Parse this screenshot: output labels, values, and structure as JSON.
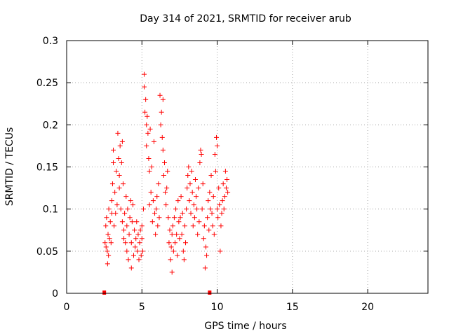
{
  "chart_data": {
    "type": "scatter",
    "title": "Day 314 of 2021, SRMTID for receiver arub",
    "xlabel": "GPS time / hours",
    "ylabel": "SRMTID / TECUs",
    "xlim": [
      0,
      24
    ],
    "ylim": [
      0,
      0.3
    ],
    "xticks": [
      0,
      5,
      10,
      15,
      20
    ],
    "yticks": [
      0,
      0.05,
      0.1,
      0.15,
      0.2,
      0.25,
      0.3
    ],
    "ytick_labels": [
      "0",
      "0.05",
      "0.1",
      "0.15",
      "0.2",
      "0.25",
      "0.3"
    ],
    "grid": true,
    "marker": "+",
    "color": "#ff0000",
    "interval_markers": [
      [
        2.5,
        0
      ],
      [
        9.5,
        0
      ]
    ],
    "series": [
      {
        "name": "SRMTID",
        "points": [
          [
            2.55,
            0.06
          ],
          [
            2.6,
            0.08
          ],
          [
            2.62,
            0.055
          ],
          [
            2.65,
            0.09
          ],
          [
            2.7,
            0.05
          ],
          [
            2.72,
            0.035
          ],
          [
            2.75,
            0.07
          ],
          [
            2.78,
            0.045
          ],
          [
            2.8,
            0.1
          ],
          [
            2.85,
            0.065
          ],
          [
            2.9,
            0.085
          ],
          [
            2.95,
            0.06
          ],
          [
            3.0,
            0.11
          ],
          [
            3.0,
            0.095
          ],
          [
            3.05,
            0.13
          ],
          [
            3.1,
            0.155
          ],
          [
            3.1,
            0.17
          ],
          [
            3.15,
            0.08
          ],
          [
            3.2,
            0.12
          ],
          [
            3.25,
            0.095
          ],
          [
            3.3,
            0.145
          ],
          [
            3.35,
            0.105
          ],
          [
            3.4,
            0.19
          ],
          [
            3.45,
            0.16
          ],
          [
            3.5,
            0.14
          ],
          [
            3.5,
            0.125
          ],
          [
            3.55,
            0.175
          ],
          [
            3.6,
            0.1
          ],
          [
            3.65,
            0.155
          ],
          [
            3.7,
            0.18
          ],
          [
            3.7,
            0.085
          ],
          [
            3.75,
            0.13
          ],
          [
            3.8,
            0.065
          ],
          [
            3.8,
            0.075
          ],
          [
            3.85,
            0.095
          ],
          [
            3.9,
            0.06
          ],
          [
            3.95,
            0.115
          ],
          [
            4.0,
            0.08
          ],
          [
            4.0,
            0.05
          ],
          [
            4.05,
            0.1
          ],
          [
            4.1,
            0.04
          ],
          [
            4.15,
            0.07
          ],
          [
            4.2,
            0.09
          ],
          [
            4.25,
            0.11
          ],
          [
            4.3,
            0.03
          ],
          [
            4.3,
            0.06
          ],
          [
            4.35,
            0.085
          ],
          [
            4.4,
            0.105
          ],
          [
            4.45,
            0.045
          ],
          [
            4.5,
            0.075
          ],
          [
            4.55,
            0.055
          ],
          [
            4.6,
            0.065
          ],
          [
            4.65,
            0.085
          ],
          [
            4.7,
            0.05
          ],
          [
            4.75,
            0.07
          ],
          [
            4.8,
            0.04
          ],
          [
            4.85,
            0.06
          ],
          [
            4.9,
            0.075
          ],
          [
            4.95,
            0.045
          ],
          [
            5.0,
            0.065
          ],
          [
            5.0,
            0.08
          ],
          [
            5.05,
            0.05
          ],
          [
            5.1,
            0.1
          ],
          [
            5.15,
            0.26
          ],
          [
            5.15,
            0.245
          ],
          [
            5.2,
            0.215
          ],
          [
            5.25,
            0.23
          ],
          [
            5.3,
            0.2
          ],
          [
            5.3,
            0.175
          ],
          [
            5.35,
            0.21
          ],
          [
            5.4,
            0.19
          ],
          [
            5.45,
            0.16
          ],
          [
            5.5,
            0.145
          ],
          [
            5.5,
            0.105
          ],
          [
            5.55,
            0.195
          ],
          [
            5.6,
            0.12
          ],
          [
            5.65,
            0.15
          ],
          [
            5.7,
            0.085
          ],
          [
            5.75,
            0.11
          ],
          [
            5.8,
            0.18
          ],
          [
            5.85,
            0.095
          ],
          [
            5.9,
            0.07
          ],
          [
            5.95,
            0.1
          ],
          [
            6.0,
            0.115
          ],
          [
            6.05,
            0.08
          ],
          [
            6.1,
            0.13
          ],
          [
            6.15,
            0.09
          ],
          [
            6.2,
            0.235
          ],
          [
            6.25,
            0.2
          ],
          [
            6.3,
            0.215
          ],
          [
            6.35,
            0.185
          ],
          [
            6.4,
            0.17
          ],
          [
            6.4,
            0.23
          ],
          [
            6.45,
            0.14
          ],
          [
            6.5,
            0.155
          ],
          [
            6.55,
            0.12
          ],
          [
            6.6,
            0.105
          ],
          [
            6.65,
            0.125
          ],
          [
            6.7,
            0.145
          ],
          [
            6.75,
            0.09
          ],
          [
            6.8,
            0.06
          ],
          [
            6.85,
            0.075
          ],
          [
            6.9,
            0.04
          ],
          [
            6.95,
            0.055
          ],
          [
            7.0,
            0.025
          ],
          [
            7.0,
            0.07
          ],
          [
            7.05,
            0.08
          ],
          [
            7.1,
            0.05
          ],
          [
            7.15,
            0.09
          ],
          [
            7.2,
            0.06
          ],
          [
            7.25,
            0.1
          ],
          [
            7.3,
            0.07
          ],
          [
            7.35,
            0.045
          ],
          [
            7.4,
            0.11
          ],
          [
            7.45,
            0.085
          ],
          [
            7.5,
            0.065
          ],
          [
            7.55,
            0.09
          ],
          [
            7.6,
            0.115
          ],
          [
            7.65,
            0.07
          ],
          [
            7.7,
            0.095
          ],
          [
            7.75,
            0.05
          ],
          [
            7.8,
            0.04
          ],
          [
            7.85,
            0.08
          ],
          [
            7.9,
            0.06
          ],
          [
            7.95,
            0.1
          ],
          [
            8.0,
            0.125
          ],
          [
            8.05,
            0.14
          ],
          [
            8.1,
            0.15
          ],
          [
            8.15,
            0.11
          ],
          [
            8.2,
            0.13
          ],
          [
            8.25,
            0.095
          ],
          [
            8.3,
            0.145
          ],
          [
            8.35,
            0.12
          ],
          [
            8.4,
            0.08
          ],
          [
            8.45,
            0.105
          ],
          [
            8.5,
            0.09
          ],
          [
            8.55,
            0.135
          ],
          [
            8.6,
            0.115
          ],
          [
            8.65,
            0.1
          ],
          [
            8.7,
            0.07
          ],
          [
            8.75,
            0.125
          ],
          [
            8.8,
            0.085
          ],
          [
            8.85,
            0.155
          ],
          [
            8.9,
            0.17
          ],
          [
            8.95,
            0.165
          ],
          [
            9.0,
            0.1
          ],
          [
            9.05,
            0.13
          ],
          [
            9.1,
            0.065
          ],
          [
            9.15,
            0.08
          ],
          [
            9.2,
            0.03
          ],
          [
            9.25,
            0.055
          ],
          [
            9.3,
            0.045
          ],
          [
            9.35,
            0.09
          ],
          [
            9.4,
            0.11
          ],
          [
            9.45,
            0.075
          ],
          [
            9.5,
            0.12
          ],
          [
            9.55,
            0.1
          ],
          [
            9.6,
            0.14
          ],
          [
            9.65,
            0.095
          ],
          [
            9.7,
            0.08
          ],
          [
            9.75,
            0.115
          ],
          [
            9.8,
            0.07
          ],
          [
            9.85,
            0.165
          ],
          [
            9.9,
            0.145
          ],
          [
            9.95,
            0.185
          ],
          [
            10.0,
            0.1
          ],
          [
            10.0,
            0.175
          ],
          [
            10.05,
            0.09
          ],
          [
            10.1,
            0.125
          ],
          [
            10.15,
            0.105
          ],
          [
            10.2,
            0.05
          ],
          [
            10.25,
            0.08
          ],
          [
            10.3,
            0.095
          ],
          [
            10.35,
            0.11
          ],
          [
            10.4,
            0.13
          ],
          [
            10.45,
            0.1
          ],
          [
            10.5,
            0.115
          ],
          [
            10.55,
            0.145
          ],
          [
            10.6,
            0.125
          ],
          [
            10.65,
            0.135
          ],
          [
            10.7,
            0.12
          ]
        ]
      }
    ]
  }
}
